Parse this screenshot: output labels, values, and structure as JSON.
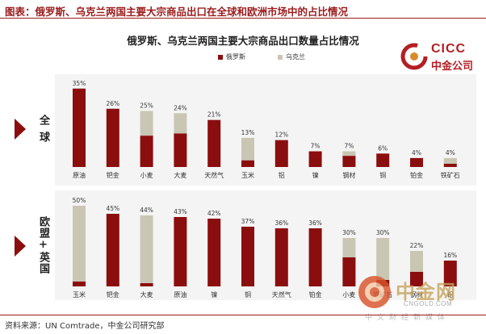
{
  "figure_title": "图表：俄罗斯、乌克兰两国主要大宗商品出口在全球和欧洲市场中的占比情况",
  "source": "资料来源：UN Comtrade，中金公司研究部",
  "logo": {
    "en": "CICC",
    "cn": "中金公司"
  },
  "watermark": {
    "cn": "中金网",
    "url": "CNGOLD.COM",
    "sub": "中文财经新媒体"
  },
  "colors": {
    "russia": "#8b0e0e",
    "ukraine": "#c9c6b4",
    "panel": "#f4f4f4",
    "accent": "#9b1c1c"
  },
  "chart_data": {
    "type": "bar",
    "stacked": true,
    "title": "俄罗斯、乌克兰两国主要大宗商品出口数量占比情况",
    "legend": [
      "俄罗斯",
      "乌克兰"
    ],
    "legend_position": "top-center",
    "panels": [
      {
        "label": "全球",
        "categories": [
          "原油",
          "钯金",
          "小麦",
          "大麦",
          "天然气",
          "玉米",
          "铝",
          "镍",
          "钢材",
          "铜",
          "铂金",
          "铁矿石"
        ],
        "totals": [
          "35%",
          "26%",
          "25%",
          "24%",
          "21%",
          "13%",
          "12%",
          "7%",
          "7%",
          "6%",
          "4%",
          "4%"
        ],
        "series": [
          {
            "name": "俄罗斯",
            "values": [
              35,
              26,
              14,
              15,
              21,
              3,
              12,
              7,
              5,
              6,
              4,
              1.5
            ]
          },
          {
            "name": "乌克兰",
            "values": [
              0,
              0,
              11,
              9,
              0,
              10,
              0,
              0,
              2,
              0,
              0,
              2.5
            ]
          }
        ],
        "ylim": [
          0,
          36
        ]
      },
      {
        "label": "欧盟+英国",
        "categories": [
          "玉米",
          "钯金",
          "大麦",
          "原油",
          "镍",
          "铜",
          "天然气",
          "铂金",
          "小麦",
          "铁矿石",
          "钢材",
          "铝"
        ],
        "totals": [
          "50%",
          "45%",
          "44%",
          "43%",
          "42%",
          "37%",
          "36%",
          "36%",
          "30%",
          "30%",
          "22%",
          "16%"
        ],
        "series": [
          {
            "name": "俄罗斯",
            "values": [
              3,
              45,
              2,
              43,
              42,
              37,
              36,
              36,
              18,
              4,
              9,
              16
            ]
          },
          {
            "name": "乌克兰",
            "values": [
              47,
              0,
              42,
              0,
              0,
              0,
              0,
              0,
              12,
              26,
              13,
              0
            ]
          }
        ],
        "ylim": [
          0,
          50
        ]
      }
    ]
  }
}
